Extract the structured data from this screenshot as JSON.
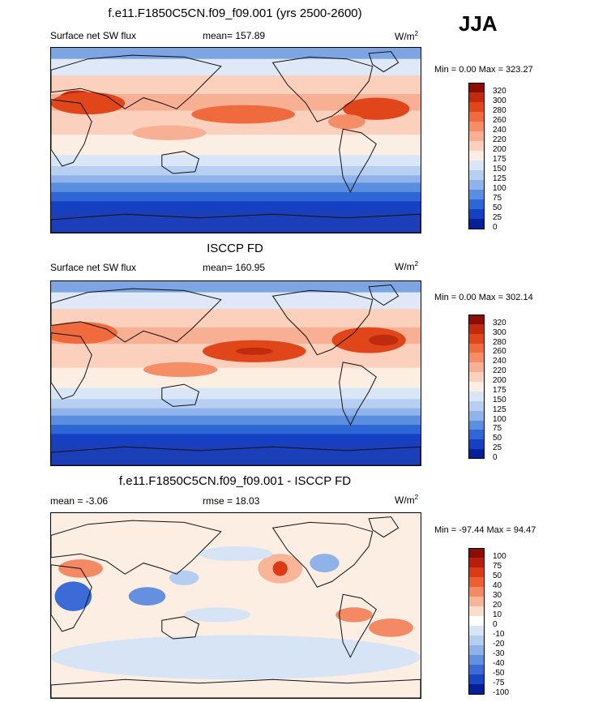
{
  "season": "JJA",
  "chart_data": [
    {
      "type": "heatmap",
      "title": "f.e11.F1850C5CN.f09_f09.001 (yrs 2500-2600)",
      "left_label": "Surface net SW flux",
      "center_label": "mean= 157.89",
      "units": "W/m",
      "units_sup": "2",
      "stats_text": "Min =   0.00 Max = 323.27",
      "min": 0.0,
      "max": 323.27,
      "mean": 157.89,
      "colorbar_levels": [
        "320",
        "300",
        "280",
        "260",
        "240",
        "220",
        "200",
        "175",
        "150",
        "125",
        "100",
        "75",
        "50",
        "25",
        "0"
      ],
      "colorbar_colors": [
        "#8c0d06",
        "#c02a0d",
        "#e0461a",
        "#ef6a3c",
        "#f58d66",
        "#f8b095",
        "#fbd0bd",
        "#fdeee4",
        "#d8e6f7",
        "#b7d0f1",
        "#8fb3ea",
        "#5a8fe0",
        "#2f66d6",
        "#1640c4",
        "#06209a"
      ]
    },
    {
      "type": "heatmap",
      "title": "ISCCP FD",
      "left_label": "Surface net SW flux",
      "center_label": "mean= 160.95",
      "units": "W/m",
      "units_sup": "2",
      "stats_text": "Min =   0.00 Max = 302.14",
      "min": 0.0,
      "max": 302.14,
      "mean": 160.95,
      "colorbar_levels": [
        "320",
        "300",
        "280",
        "260",
        "240",
        "220",
        "200",
        "175",
        "150",
        "125",
        "100",
        "75",
        "50",
        "25",
        "0"
      ],
      "colorbar_colors": [
        "#8c0d06",
        "#c02a0d",
        "#e0461a",
        "#ef6a3c",
        "#f58d66",
        "#f8b095",
        "#fbd0bd",
        "#fdeee4",
        "#d8e6f7",
        "#b7d0f1",
        "#8fb3ea",
        "#5a8fe0",
        "#2f66d6",
        "#1640c4",
        "#06209a"
      ]
    },
    {
      "type": "heatmap",
      "title": "f.e11.F1850C5CN.f09_f09.001 - ISCCP FD",
      "left_label": "mean =  -3.06",
      "center_label": "rmse =  18.03",
      "units": "W/m",
      "units_sup": "2",
      "stats_text": "Min = -97.44 Max =  94.47",
      "min": -97.44,
      "max": 94.47,
      "mean": -3.06,
      "rmse": 18.03,
      "colorbar_levels": [
        "100",
        "75",
        "50",
        "40",
        "30",
        "20",
        "10",
        "0",
        "-10",
        "-20",
        "-30",
        "-40",
        "-50",
        "-75",
        "-100"
      ],
      "colorbar_colors": [
        "#8c0d06",
        "#b81f0a",
        "#dc3a15",
        "#ec5f33",
        "#f38a64",
        "#f8b598",
        "#fcdccd",
        "#ffffff",
        "#d7e4f6",
        "#b5cdf0",
        "#8fb2e9",
        "#6590e0",
        "#3a6bd6",
        "#1845c4",
        "#061e96"
      ]
    }
  ]
}
